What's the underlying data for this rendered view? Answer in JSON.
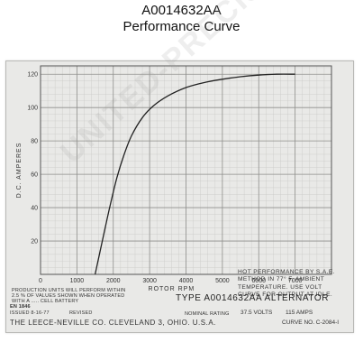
{
  "header": {
    "part_number": "A0014632AA",
    "subtitle": "Performance Curve"
  },
  "chart_data": {
    "type": "line",
    "title": "",
    "xlabel": "ROTOR RPM",
    "ylabel": "D.C. AMPERES",
    "xlim": [
      0,
      8000
    ],
    "ylim": [
      0,
      125
    ],
    "x_ticks": [
      0,
      1000,
      2000,
      3000,
      4000,
      5000,
      6000,
      7000
    ],
    "y_ticks": [
      20,
      40,
      60,
      80,
      100,
      120
    ],
    "x_tick_labels": [
      "0",
      "1000",
      "2000",
      "3000",
      "4000",
      "5000",
      "6000",
      "7000"
    ],
    "y_tick_labels": [
      "20",
      "40",
      "60",
      "80",
      "100",
      "120"
    ],
    "grid": true,
    "series": [
      {
        "x": [
          1500,
          1700,
          1900,
          2100,
          2300,
          2500,
          2800,
          3100,
          3500,
          4000,
          4500,
          5000,
          5500,
          6000,
          6500,
          7000
        ],
        "y": [
          0,
          20,
          40,
          58,
          72,
          83,
          94,
          101,
          107,
          112,
          115,
          117,
          118.5,
          119.5,
          120,
          120
        ]
      }
    ]
  },
  "sheet": {
    "type_line": "TYPE A0014632AA ALTERNATOR",
    "production_note_1": "PRODUCTION UNITS WILL PERFORM WITHIN",
    "production_note_2": "2.5 % OF VALUES SHOWN WHEN OPERATED",
    "production_note_3": "WITH A ..... CELL BATTERY",
    "eng_no": "EN 1846",
    "issued": "ISSUED 8-16-77",
    "revised": "REVISED",
    "nominal_rating": "NOMINAL RATING",
    "volts": "37.5 VOLTS",
    "amps": "115 AMPS",
    "company": "THE LEECE-NEVILLE CO. CLEVELAND 3, OHIO. U.S.A.",
    "curve_no": "CURVE NO. C-2084-I",
    "note_1": "HOT PERFORMANCE BY S.A.E.",
    "note_2": "METHOD IN 77° F. AMBIENT",
    "note_3": "TEMPERATURE. USE VOLT",
    "note_4": "CURVE FOR OUTPUT AT IDLE."
  },
  "watermark": "UNITED-PRECISION-FACTORY"
}
